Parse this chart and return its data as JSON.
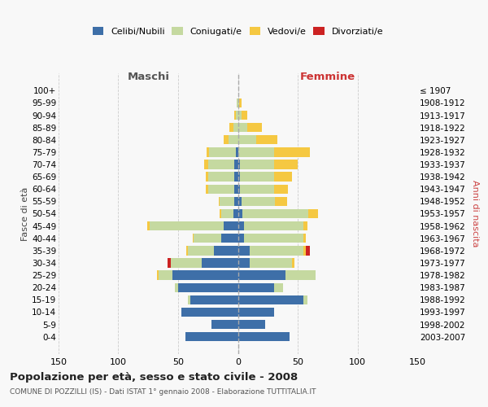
{
  "age_groups": [
    "0-4",
    "5-9",
    "10-14",
    "15-19",
    "20-24",
    "25-29",
    "30-34",
    "35-39",
    "40-44",
    "45-49",
    "50-54",
    "55-59",
    "60-64",
    "65-69",
    "70-74",
    "75-79",
    "80-84",
    "85-89",
    "90-94",
    "95-99",
    "100+"
  ],
  "year_labels": [
    "2003-2007",
    "1998-2002",
    "1993-1997",
    "1988-1992",
    "1983-1987",
    "1978-1982",
    "1973-1977",
    "1968-1972",
    "1963-1967",
    "1958-1962",
    "1953-1957",
    "1948-1952",
    "1943-1947",
    "1938-1942",
    "1933-1937",
    "1928-1932",
    "1923-1927",
    "1918-1922",
    "1913-1917",
    "1908-1912",
    "≤ 1907"
  ],
  "maschi_celibi": [
    44,
    22,
    47,
    40,
    50,
    55,
    30,
    20,
    14,
    12,
    4,
    3,
    3,
    3,
    3,
    2,
    0,
    0,
    0,
    0,
    0
  ],
  "maschi_coniugati": [
    0,
    0,
    0,
    2,
    3,
    11,
    26,
    22,
    23,
    62,
    10,
    12,
    22,
    22,
    22,
    22,
    8,
    4,
    2,
    1,
    0
  ],
  "maschi_vedovi": [
    0,
    0,
    0,
    0,
    0,
    2,
    0,
    1,
    1,
    2,
    1,
    1,
    2,
    2,
    3,
    2,
    4,
    3,
    1,
    0,
    0
  ],
  "maschi_divorziati": [
    0,
    0,
    0,
    0,
    0,
    0,
    3,
    0,
    0,
    0,
    0,
    0,
    0,
    0,
    0,
    0,
    0,
    0,
    0,
    0,
    0
  ],
  "femmine_nubili": [
    43,
    23,
    30,
    55,
    30,
    40,
    10,
    10,
    5,
    5,
    4,
    3,
    2,
    2,
    2,
    0,
    0,
    0,
    0,
    0,
    0
  ],
  "femmine_coniugate": [
    0,
    0,
    0,
    3,
    8,
    25,
    35,
    45,
    50,
    50,
    55,
    28,
    28,
    28,
    28,
    30,
    15,
    8,
    3,
    1,
    0
  ],
  "femmine_vedove": [
    0,
    0,
    0,
    0,
    0,
    0,
    2,
    2,
    2,
    3,
    8,
    10,
    12,
    15,
    20,
    30,
    18,
    12,
    5,
    2,
    0
  ],
  "femmine_divorziate": [
    0,
    0,
    0,
    0,
    0,
    0,
    0,
    3,
    0,
    0,
    0,
    0,
    0,
    0,
    0,
    0,
    0,
    0,
    0,
    0,
    0
  ],
  "color_celibi": "#3e6fa8",
  "color_coniugati": "#c5d9a0",
  "color_vedovi": "#f5c842",
  "color_divorziati": "#cc2222",
  "title": "Popolazione per età, sesso e stato civile - 2008",
  "subtitle": "COMUNE DI POZZILLI (IS) - Dati ISTAT 1° gennaio 2008 - Elaborazione TUTTITALIA.IT",
  "label_maschi": "Maschi",
  "label_femmine": "Femmine",
  "label_fasce": "Fasce di età",
  "label_anni": "Anni di nascita",
  "xlim": 150,
  "bg_color": "#f8f8f8"
}
